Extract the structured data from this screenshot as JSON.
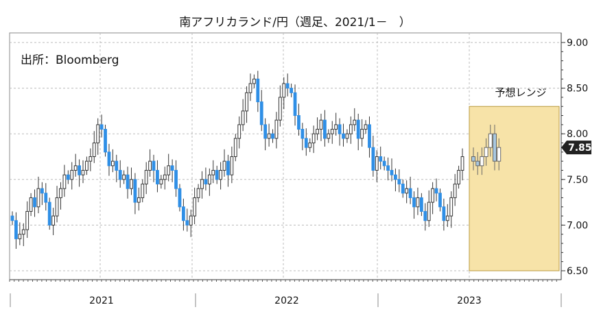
{
  "chart_data": {
    "type": "candlestick",
    "title": "南アフリカランド/円（週足、2021/1－　）",
    "source": "出所：Bloomberg",
    "y_ticks": [
      "9.00",
      "8.50",
      "8.00",
      "7.50",
      "7.00",
      "6.50"
    ],
    "ylim": [
      6.5,
      9.0
    ],
    "x_year_labels": [
      "2021",
      "2022",
      "2023"
    ],
    "last_value": "7.85",
    "forecast_range": {
      "label": "予想レンジ",
      "low": 6.5,
      "high": 8.3
    },
    "colors": {
      "up": "#ffffff",
      "down": "#2f8fe6",
      "forecast": "#a8c8e0",
      "range_fill": "#f7e3a8",
      "range_border": "#b89a40",
      "last_badge": "#222222"
    },
    "grid": true,
    "weekly_close": [
      7.05,
      6.85,
      6.9,
      6.95,
      7.15,
      7.3,
      7.2,
      7.4,
      7.35,
      7.25,
      7.0,
      7.1,
      7.3,
      7.4,
      7.55,
      7.5,
      7.6,
      7.65,
      7.55,
      7.6,
      7.7,
      7.75,
      7.9,
      8.1,
      8.05,
      7.8,
      7.65,
      7.7,
      7.6,
      7.5,
      7.55,
      7.4,
      7.5,
      7.25,
      7.3,
      7.45,
      7.6,
      7.7,
      7.6,
      7.45,
      7.5,
      7.55,
      7.65,
      7.6,
      7.4,
      7.2,
      7.05,
      7.0,
      7.1,
      7.3,
      7.4,
      7.5,
      7.45,
      7.55,
      7.6,
      7.5,
      7.6,
      7.7,
      7.55,
      7.75,
      7.95,
      8.1,
      8.25,
      8.45,
      8.55,
      8.6,
      8.35,
      8.1,
      7.95,
      8.0,
      7.95,
      8.15,
      8.4,
      8.55,
      8.5,
      8.45,
      8.2,
      8.05,
      7.95,
      7.85,
      7.9,
      8.0,
      8.05,
      8.15,
      7.95,
      8.0,
      8.05,
      8.1,
      8.0,
      7.95,
      8.0,
      8.1,
      8.15,
      7.95,
      8.05,
      8.1,
      7.85,
      7.6,
      7.75,
      7.7,
      7.65,
      7.6,
      7.55,
      7.5,
      7.45,
      7.35,
      7.4,
      7.3,
      7.2,
      7.3,
      7.15,
      7.05,
      7.25,
      7.4,
      7.35,
      7.2,
      7.05,
      7.1,
      7.3,
      7.45,
      7.6,
      7.75
    ],
    "forecast_weekly": [
      7.7,
      7.65,
      7.75,
      7.85,
      8.0,
      7.7,
      7.85
    ]
  }
}
